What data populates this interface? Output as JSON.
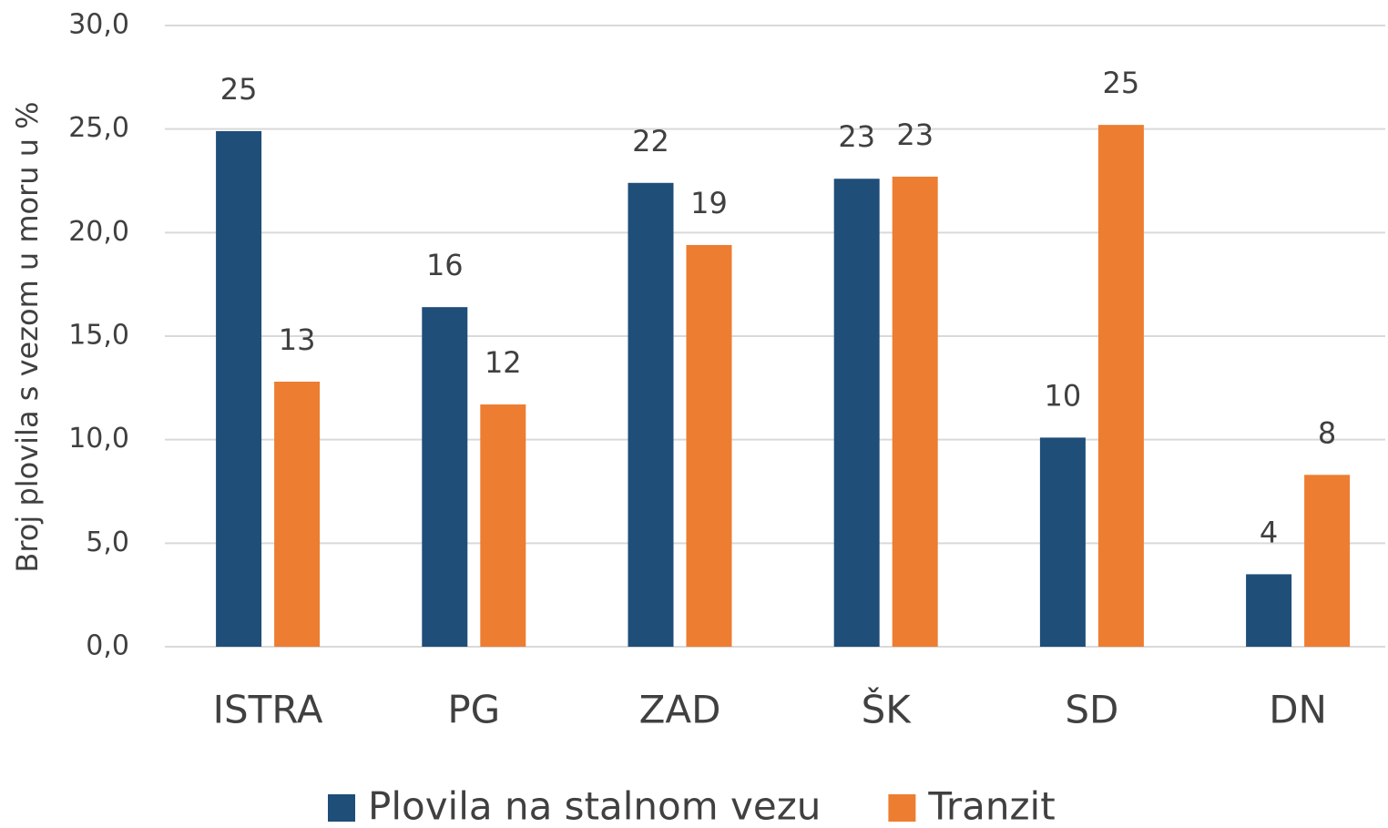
{
  "chart_data": {
    "type": "bar",
    "y_label": "Broj plovila s vezom u moru u %",
    "categories": [
      "ISTRA",
      "PG",
      "ZAD",
      "ŠK",
      "SD",
      "DN"
    ],
    "series": [
      {
        "name": "Plovila na stalnom vezu",
        "color": "#1f4e79",
        "values": [
          24.9,
          16.4,
          22.4,
          22.6,
          10.1,
          3.5
        ],
        "value_labels": [
          "25",
          "16",
          "22",
          "23",
          "10",
          "4"
        ]
      },
      {
        "name": "Tranzit",
        "color": "#ed7d31",
        "values": [
          12.8,
          11.7,
          19.4,
          22.7,
          25.2,
          8.3
        ],
        "value_labels": [
          "13",
          "12",
          "19",
          "23",
          "25",
          "8"
        ]
      }
    ],
    "ylim": [
      0,
      30
    ],
    "yticks": [
      {
        "value": 0,
        "label": "0,0"
      },
      {
        "value": 5,
        "label": "5,0"
      },
      {
        "value": 10,
        "label": "10,0"
      },
      {
        "value": 15,
        "label": "15,0"
      },
      {
        "value": 20,
        "label": "20,0"
      },
      {
        "value": 25,
        "label": "25,0"
      },
      {
        "value": 30,
        "label": "30,0"
      }
    ],
    "grid": true,
    "legend": "bottom"
  }
}
